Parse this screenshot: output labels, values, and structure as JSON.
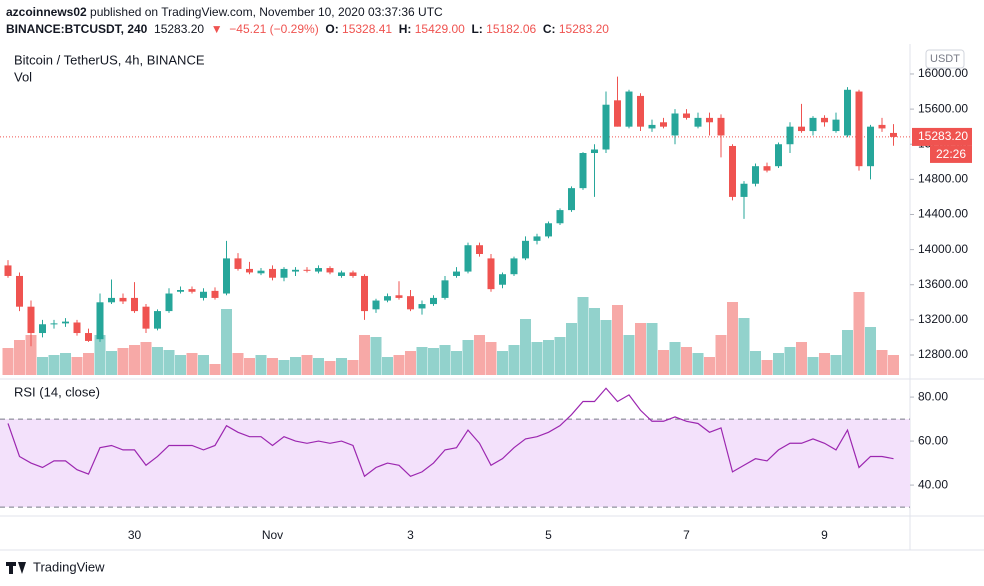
{
  "header": {
    "line1": [
      {
        "text": "azcoinnews02",
        "color": "#131722",
        "bold": true
      },
      {
        "text": " published on TradingView.com, November 10, 2020 03:37:36 UTC",
        "color": "#131722",
        "bold": false
      }
    ],
    "line2": [
      {
        "text": "BINANCE:BTCUSDT, 240",
        "color": "#131722",
        "bold": true
      },
      {
        "text": "  15283.20",
        "color": "#131722",
        "bold": false
      },
      {
        "text": "  ▼  −45.21 (−0.29%)",
        "color": "#ef5350",
        "bold": false
      },
      {
        "text": "  O:",
        "color": "#131722",
        "bold": true
      },
      {
        "text": " 15328.41",
        "color": "#ef5350",
        "bold": false
      },
      {
        "text": "  H:",
        "color": "#131722",
        "bold": true
      },
      {
        "text": " 15429.00",
        "color": "#ef5350",
        "bold": false
      },
      {
        "text": "  L:",
        "color": "#131722",
        "bold": true
      },
      {
        "text": " 15182.06",
        "color": "#ef5350",
        "bold": false
      },
      {
        "text": "  C:",
        "color": "#131722",
        "bold": true
      },
      {
        "text": " 15283.20",
        "color": "#ef5350",
        "bold": false
      }
    ]
  },
  "logo": "TradingView",
  "chart_data": [
    {
      "type": "candlestick",
      "title": "Bitcoin / TetherUS, 4h, BINANCE",
      "axis_unit": "USDT",
      "up_color": "#26a69a",
      "down_color": "#ef5350",
      "last_price_label": "15283.20",
      "countdown": "22:26",
      "categories": [
        null,
        null,
        null,
        null,
        null,
        null,
        null,
        null,
        null,
        null,
        null,
        "30",
        null,
        null,
        null,
        null,
        null,
        null,
        null,
        null,
        null,
        null,
        null,
        "Nov",
        null,
        null,
        null,
        null,
        null,
        null,
        null,
        null,
        null,
        null,
        null,
        "3",
        null,
        null,
        null,
        null,
        null,
        null,
        null,
        null,
        null,
        null,
        null,
        "5",
        null,
        null,
        null,
        null,
        null,
        null,
        null,
        null,
        null,
        null,
        null,
        "7",
        null,
        null,
        null,
        null,
        null,
        null,
        null,
        null,
        null,
        null,
        null,
        "9",
        null,
        null,
        null,
        null,
        null,
        null
      ],
      "open": [
        13820,
        13700,
        13350,
        13050,
        13150,
        13160,
        13170,
        13050,
        12980,
        13400,
        13450,
        13450,
        13350,
        13100,
        13300,
        13520,
        13550,
        13450,
        13530,
        13500,
        13900,
        13780,
        13730,
        13780,
        13680,
        13750,
        13770,
        13750,
        13790,
        13700,
        13740,
        13700,
        13320,
        13420,
        13480,
        13470,
        13330,
        13380,
        13450,
        13700,
        13750,
        14050,
        13900,
        13600,
        13720,
        13900,
        14100,
        14150,
        14300,
        14450,
        14700,
        15100,
        15140,
        15700,
        15400,
        15750,
        15380,
        15450,
        15300,
        15550,
        15400,
        15500,
        15500,
        15180,
        14600,
        14750,
        14950,
        14950,
        15200,
        15400,
        15350,
        15500,
        15350,
        15300,
        15800,
        14950,
        15420,
        15328.41
      ],
      "high": [
        13880,
        13740,
        13420,
        13200,
        13200,
        13220,
        13200,
        13100,
        13500,
        13660,
        13500,
        13630,
        13380,
        13320,
        13560,
        13580,
        13580,
        13560,
        13570,
        14100,
        13960,
        13860,
        13790,
        13820,
        13800,
        13800,
        13800,
        13820,
        13810,
        13760,
        13760,
        13720,
        13440,
        13500,
        13640,
        13540,
        13420,
        13480,
        13700,
        13800,
        14080,
        14080,
        13950,
        13740,
        13920,
        14150,
        14180,
        14320,
        14470,
        14720,
        15110,
        15200,
        15800,
        15970,
        15820,
        15780,
        15480,
        15500,
        15600,
        15600,
        15560,
        15560,
        15540,
        15200,
        14780,
        14980,
        14990,
        15220,
        15450,
        15660,
        15520,
        15530,
        15560,
        15850,
        15820,
        15420,
        15500,
        15429
      ],
      "low": [
        13680,
        13300,
        12900,
        13000,
        13100,
        13120,
        13020,
        12950,
        12950,
        13380,
        13380,
        13280,
        13050,
        13080,
        13280,
        13500,
        13500,
        13420,
        13430,
        13480,
        13760,
        13720,
        13710,
        13650,
        13640,
        13700,
        13740,
        13730,
        13720,
        13680,
        13680,
        13200,
        13280,
        13400,
        13430,
        13300,
        13260,
        13360,
        13430,
        13680,
        13730,
        13920,
        13520,
        13560,
        13700,
        13880,
        14060,
        14130,
        14280,
        14430,
        14680,
        14600,
        15100,
        15400,
        15380,
        15350,
        15340,
        15380,
        15200,
        15480,
        15380,
        15300,
        15050,
        14560,
        14350,
        14720,
        14880,
        14930,
        15100,
        15330,
        15300,
        15400,
        15330,
        15280,
        14900,
        14800,
        15340,
        15182.06
      ],
      "close": [
        13700,
        13350,
        13050,
        13150,
        13160,
        13180,
        13050,
        12960,
        13400,
        13450,
        13410,
        13300,
        13100,
        13300,
        13500,
        13540,
        13520,
        13520,
        13450,
        13900,
        13780,
        13740,
        13760,
        13680,
        13780,
        13770,
        13760,
        13790,
        13740,
        13740,
        13700,
        13300,
        13420,
        13470,
        13450,
        13320,
        13380,
        13450,
        13650,
        13750,
        14050,
        13950,
        13550,
        13720,
        13900,
        14100,
        14150,
        14300,
        14450,
        14700,
        15100,
        15140,
        15650,
        15400,
        15800,
        15400,
        15420,
        15400,
        15550,
        15500,
        15500,
        15450,
        15300,
        14600,
        14750,
        14950,
        14900,
        15200,
        15400,
        15350,
        15500,
        15450,
        15480,
        15820,
        14950,
        15400,
        15380,
        15283.2
      ],
      "ylim": [
        12538,
        16273
      ],
      "yticks": [
        {
          "value": 12800,
          "label": "12800.00"
        },
        {
          "value": 13200,
          "label": "13200.00"
        },
        {
          "value": 13600,
          "label": "13600.00"
        },
        {
          "value": 14000,
          "label": "14000.00"
        },
        {
          "value": 14400,
          "label": "14400.00"
        },
        {
          "value": 14800,
          "label": "14800.00"
        },
        {
          "value": 15200,
          "label": "15200.00"
        },
        {
          "value": 15600,
          "label": "15600.00"
        },
        {
          "value": 16000,
          "label": "16000.00"
        }
      ]
    },
    {
      "type": "bar",
      "title": "Vol",
      "values": [
        27,
        35,
        40,
        18,
        20,
        22,
        18,
        22,
        40,
        24,
        27,
        30,
        33,
        28,
        25,
        20,
        22,
        20,
        11,
        66,
        22,
        17,
        20,
        17,
        15,
        18,
        20,
        17,
        14,
        17,
        15,
        40,
        38,
        18,
        20,
        24,
        28,
        27,
        30,
        24,
        35,
        40,
        33,
        24,
        30,
        56,
        33,
        35,
        38,
        52,
        78,
        67,
        55,
        70,
        40,
        52,
        52,
        25,
        33,
        28,
        22,
        18,
        40,
        73,
        57,
        24,
        15,
        22,
        28,
        33,
        18,
        22,
        20,
        45,
        83,
        48,
        25,
        20
      ]
    },
    {
      "type": "line",
      "title": "RSI (14, close)",
      "color": "#9c27b0",
      "band_color": "#f3e1fb",
      "bands": [
        30,
        70
      ],
      "values": [
        68,
        53,
        50,
        48,
        51,
        51,
        47,
        45,
        57,
        58,
        56,
        56,
        49,
        53,
        58,
        58,
        58,
        56,
        58,
        67,
        64,
        62,
        62,
        58,
        62,
        60,
        59,
        60,
        59,
        60,
        58,
        44,
        48,
        50,
        49,
        44,
        46,
        50,
        56,
        57,
        65,
        59,
        49,
        52,
        57,
        61,
        62,
        64,
        67,
        72,
        78,
        78,
        84,
        78,
        81,
        74,
        69,
        69,
        71,
        69,
        68,
        64,
        66,
        46,
        49,
        52,
        51,
        56,
        59,
        59,
        61,
        59,
        56,
        65,
        48,
        53,
        53,
        52
      ],
      "ylim": [
        26.4,
        86.4
      ],
      "yticks": [
        {
          "value": 40,
          "label": "40.00"
        },
        {
          "value": 60,
          "label": "60.00"
        },
        {
          "value": 80,
          "label": "80.00"
        }
      ]
    }
  ]
}
